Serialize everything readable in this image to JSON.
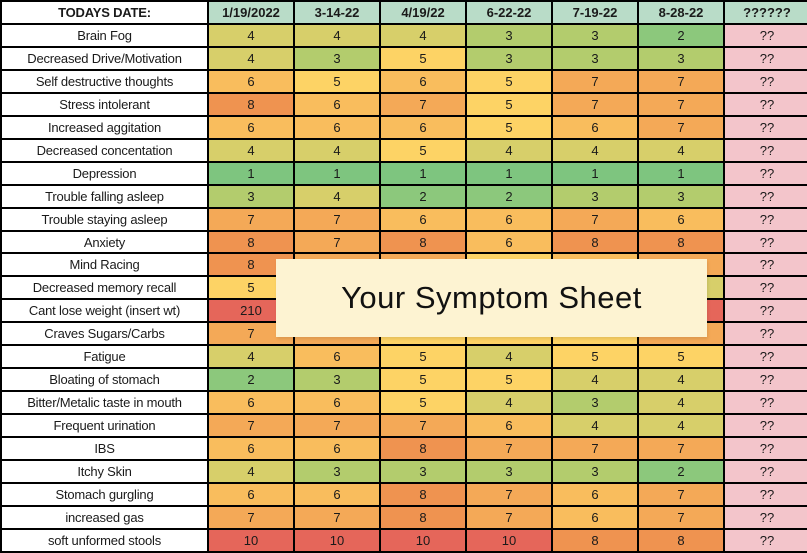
{
  "palette": {
    "mint": "#b9dcc8",
    "pink": "#f3c5cb",
    "cream": "#fdf3d2",
    "c1": "#7ec57f",
    "c2": "#8cc87c",
    "c3": "#b3cc6d",
    "c4": "#d7cf6a",
    "c5": "#fdd365",
    "c6": "#f9bd5d",
    "c7": "#f4a957",
    "c8": "#ef9350",
    "red": "#e5665a"
  },
  "header": {
    "label": "TODAYS DATE:",
    "dates": [
      "1/19/2022",
      "3-14-22",
      "4/19/22",
      "6-22-22",
      "7-19-22",
      "8-28-22",
      "??????"
    ]
  },
  "unknown_value": "??",
  "overlay": {
    "text": "Your Symptom Sheet"
  },
  "rows": [
    {
      "label": "Brain Fog",
      "cells": [
        {
          "v": "4",
          "c": "c4"
        },
        {
          "v": "4",
          "c": "c4"
        },
        {
          "v": "4",
          "c": "c4"
        },
        {
          "v": "3",
          "c": "c3"
        },
        {
          "v": "3",
          "c": "c3"
        },
        {
          "v": "2",
          "c": "c2"
        }
      ]
    },
    {
      "label": "Decreased Drive/Motivation",
      "cells": [
        {
          "v": "4",
          "c": "c4"
        },
        {
          "v": "3",
          "c": "c3"
        },
        {
          "v": "5",
          "c": "c5"
        },
        {
          "v": "3",
          "c": "c3"
        },
        {
          "v": "3",
          "c": "c3"
        },
        {
          "v": "3",
          "c": "c3"
        }
      ]
    },
    {
      "label": "Self destructive thoughts",
      "cells": [
        {
          "v": "6",
          "c": "c6"
        },
        {
          "v": "5",
          "c": "c5"
        },
        {
          "v": "6",
          "c": "c6"
        },
        {
          "v": "5",
          "c": "c5"
        },
        {
          "v": "7",
          "c": "c7"
        },
        {
          "v": "7",
          "c": "c7"
        }
      ]
    },
    {
      "label": "Stress intolerant",
      "cells": [
        {
          "v": "8",
          "c": "c8"
        },
        {
          "v": "6",
          "c": "c6"
        },
        {
          "v": "7",
          "c": "c7"
        },
        {
          "v": "5",
          "c": "c5"
        },
        {
          "v": "7",
          "c": "c7"
        },
        {
          "v": "7",
          "c": "c7"
        }
      ]
    },
    {
      "label": "Increased aggitation",
      "cells": [
        {
          "v": "6",
          "c": "c6"
        },
        {
          "v": "6",
          "c": "c6"
        },
        {
          "v": "6",
          "c": "c6"
        },
        {
          "v": "5",
          "c": "c5"
        },
        {
          "v": "6",
          "c": "c6"
        },
        {
          "v": "7",
          "c": "c7"
        }
      ]
    },
    {
      "label": "Decreased concentation",
      "cells": [
        {
          "v": "4",
          "c": "c4"
        },
        {
          "v": "4",
          "c": "c4"
        },
        {
          "v": "5",
          "c": "c5"
        },
        {
          "v": "4",
          "c": "c4"
        },
        {
          "v": "4",
          "c": "c4"
        },
        {
          "v": "4",
          "c": "c4"
        }
      ]
    },
    {
      "label": "Depression",
      "cells": [
        {
          "v": "1",
          "c": "c1"
        },
        {
          "v": "1",
          "c": "c1"
        },
        {
          "v": "1",
          "c": "c1"
        },
        {
          "v": "1",
          "c": "c1"
        },
        {
          "v": "1",
          "c": "c1"
        },
        {
          "v": "1",
          "c": "c1"
        }
      ]
    },
    {
      "label": "Trouble falling asleep",
      "cells": [
        {
          "v": "3",
          "c": "c3"
        },
        {
          "v": "4",
          "c": "c4"
        },
        {
          "v": "2",
          "c": "c2"
        },
        {
          "v": "2",
          "c": "c2"
        },
        {
          "v": "3",
          "c": "c3"
        },
        {
          "v": "3",
          "c": "c3"
        }
      ]
    },
    {
      "label": "Trouble staying asleep",
      "cells": [
        {
          "v": "7",
          "c": "c7"
        },
        {
          "v": "7",
          "c": "c7"
        },
        {
          "v": "6",
          "c": "c6"
        },
        {
          "v": "6",
          "c": "c6"
        },
        {
          "v": "7",
          "c": "c7"
        },
        {
          "v": "6",
          "c": "c6"
        }
      ]
    },
    {
      "label": "Anxiety",
      "cells": [
        {
          "v": "8",
          "c": "c8"
        },
        {
          "v": "7",
          "c": "c7"
        },
        {
          "v": "8",
          "c": "c8"
        },
        {
          "v": "6",
          "c": "c6"
        },
        {
          "v": "8",
          "c": "c8"
        },
        {
          "v": "8",
          "c": "c8"
        }
      ]
    },
    {
      "label": "Mind Racing",
      "cells": [
        {
          "v": "8",
          "c": "c8"
        },
        {
          "v": "",
          "c": "c7"
        },
        {
          "v": "",
          "c": "c7"
        },
        {
          "v": "",
          "c": "c5"
        },
        {
          "v": "",
          "c": "c6"
        },
        {
          "v": "",
          "c": "c7"
        }
      ]
    },
    {
      "label": "Decreased memory recall",
      "cells": [
        {
          "v": "5",
          "c": "c5"
        },
        {
          "v": "",
          "c": "c5"
        },
        {
          "v": "",
          "c": "c5"
        },
        {
          "v": "",
          "c": "c5"
        },
        {
          "v": "",
          "c": "c5"
        },
        {
          "v": "",
          "c": "c4"
        }
      ]
    },
    {
      "label": "Cant lose weight (insert wt)",
      "cells": [
        {
          "v": "210",
          "c": "red"
        },
        {
          "v": "",
          "c": "red"
        },
        {
          "v": "",
          "c": "red"
        },
        {
          "v": "",
          "c": "red"
        },
        {
          "v": "",
          "c": "red"
        },
        {
          "v": "",
          "c": "red"
        }
      ]
    },
    {
      "label": "Craves Sugars/Carbs",
      "cells": [
        {
          "v": "7",
          "c": "c7"
        },
        {
          "v": "",
          "c": "c7"
        },
        {
          "v": "",
          "c": "c5"
        },
        {
          "v": "",
          "c": "c5"
        },
        {
          "v": "",
          "c": "c5"
        },
        {
          "v": "",
          "c": "c7"
        }
      ]
    },
    {
      "label": "Fatigue",
      "cells": [
        {
          "v": "4",
          "c": "c4"
        },
        {
          "v": "6",
          "c": "c6"
        },
        {
          "v": "5",
          "c": "c5"
        },
        {
          "v": "4",
          "c": "c4"
        },
        {
          "v": "5",
          "c": "c5"
        },
        {
          "v": "5",
          "c": "c5"
        }
      ]
    },
    {
      "label": "Bloating of stomach",
      "cells": [
        {
          "v": "2",
          "c": "c2"
        },
        {
          "v": "3",
          "c": "c3"
        },
        {
          "v": "5",
          "c": "c5"
        },
        {
          "v": "5",
          "c": "c5"
        },
        {
          "v": "4",
          "c": "c4"
        },
        {
          "v": "4",
          "c": "c4"
        }
      ]
    },
    {
      "label": "Bitter/Metalic taste in mouth",
      "cells": [
        {
          "v": "6",
          "c": "c6"
        },
        {
          "v": "6",
          "c": "c6"
        },
        {
          "v": "5",
          "c": "c5"
        },
        {
          "v": "4",
          "c": "c4"
        },
        {
          "v": "3",
          "c": "c3"
        },
        {
          "v": "4",
          "c": "c4"
        }
      ]
    },
    {
      "label": "Frequent urination",
      "cells": [
        {
          "v": "7",
          "c": "c7"
        },
        {
          "v": "7",
          "c": "c7"
        },
        {
          "v": "7",
          "c": "c7"
        },
        {
          "v": "6",
          "c": "c6"
        },
        {
          "v": "4",
          "c": "c4"
        },
        {
          "v": "4",
          "c": "c4"
        }
      ]
    },
    {
      "label": "IBS",
      "cells": [
        {
          "v": "6",
          "c": "c6"
        },
        {
          "v": "6",
          "c": "c6"
        },
        {
          "v": "8",
          "c": "c8"
        },
        {
          "v": "7",
          "c": "c7"
        },
        {
          "v": "7",
          "c": "c7"
        },
        {
          "v": "7",
          "c": "c7"
        }
      ]
    },
    {
      "label": "Itchy Skin",
      "cells": [
        {
          "v": "4",
          "c": "c4"
        },
        {
          "v": "3",
          "c": "c3"
        },
        {
          "v": "3",
          "c": "c3"
        },
        {
          "v": "3",
          "c": "c3"
        },
        {
          "v": "3",
          "c": "c3"
        },
        {
          "v": "2",
          "c": "c2"
        }
      ]
    },
    {
      "label": "Stomach gurgling",
      "cells": [
        {
          "v": "6",
          "c": "c6"
        },
        {
          "v": "6",
          "c": "c6"
        },
        {
          "v": "8",
          "c": "c8"
        },
        {
          "v": "7",
          "c": "c7"
        },
        {
          "v": "6",
          "c": "c6"
        },
        {
          "v": "7",
          "c": "c7"
        }
      ]
    },
    {
      "label": "increased gas",
      "cells": [
        {
          "v": "7",
          "c": "c7"
        },
        {
          "v": "7",
          "c": "c7"
        },
        {
          "v": "8",
          "c": "c8"
        },
        {
          "v": "7",
          "c": "c7"
        },
        {
          "v": "6",
          "c": "c6"
        },
        {
          "v": "7",
          "c": "c7"
        }
      ]
    },
    {
      "label": "soft unformed stools",
      "cells": [
        {
          "v": "10",
          "c": "red"
        },
        {
          "v": "10",
          "c": "red"
        },
        {
          "v": "10",
          "c": "red"
        },
        {
          "v": "10",
          "c": "red"
        },
        {
          "v": "8",
          "c": "c8"
        },
        {
          "v": "8",
          "c": "c8"
        }
      ]
    }
  ]
}
